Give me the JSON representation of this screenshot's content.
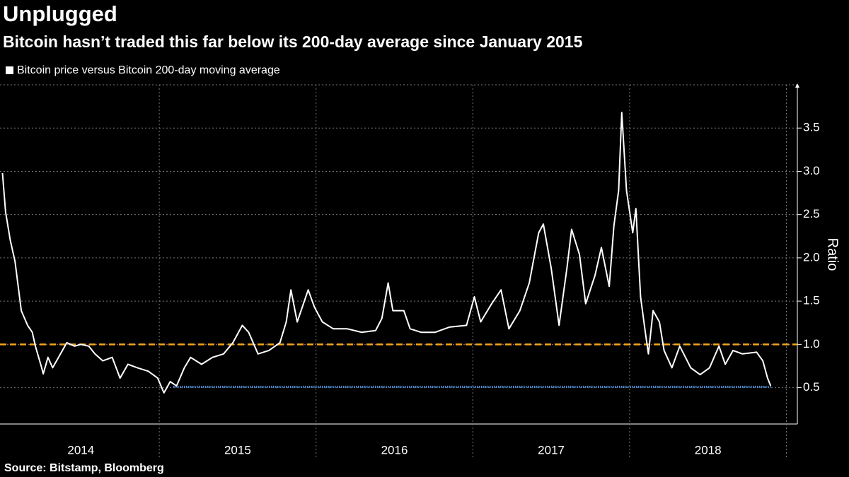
{
  "chart_data": {
    "type": "line",
    "title": "Unplugged",
    "subtitle": "Bitcoin hasn’t traded this far below its 200-day average since January 2015",
    "y_label": "Ratio",
    "source": "Source: Bitstamp, Bloomberg",
    "xlim": [
      2014.0,
      2019.07
    ],
    "ylim": [
      0.08,
      4.0
    ],
    "xticks": [
      {
        "value": 2014.5,
        "label": "2014"
      },
      {
        "value": 2015.5,
        "label": "2015"
      },
      {
        "value": 2016.5,
        "label": "2016"
      },
      {
        "value": 2017.5,
        "label": "2017"
      },
      {
        "value": 2018.5,
        "label": "2018"
      }
    ],
    "x_gridlines": [
      2015,
      2016,
      2017,
      2018,
      2019
    ],
    "yticks": [
      0.5,
      {
        "value": 1,
        "label": "1.0"
      },
      1.5,
      {
        "value": 2,
        "label": "2.0"
      },
      2.5,
      {
        "value": 3,
        "label": "3.0"
      },
      3.5
    ],
    "grid": true,
    "reference_lines": [
      {
        "value": 1,
        "color": "#f5a31a",
        "style": "dashed"
      },
      {
        "value": 0.51,
        "color": "#4a8fdb",
        "style": "dotted",
        "x_range": [
          2015.09,
          2018.9
        ]
      }
    ],
    "x": [
      2014.0,
      2014.02,
      2014.05,
      2014.08,
      2014.12,
      2014.16,
      2014.19,
      2014.21,
      2014.25,
      2014.26,
      2014.29,
      2014.32,
      2014.37,
      2014.41,
      2014.46,
      2014.5,
      2014.55,
      2014.59,
      2014.64,
      2014.7,
      2014.75,
      2014.8,
      2014.86,
      2014.93,
      2014.99,
      2015.03,
      2015.07,
      2015.11,
      2015.16,
      2015.2,
      2015.27,
      2015.34,
      2015.41,
      2015.47,
      2015.53,
      2015.57,
      2015.63,
      2015.7,
      2015.77,
      2015.81,
      2015.84,
      2015.88,
      2015.95,
      2015.99,
      2016.04,
      2016.11,
      2016.2,
      2016.29,
      2016.38,
      2016.42,
      2016.46,
      2016.49,
      2016.56,
      2016.6,
      2016.67,
      2016.76,
      2016.85,
      2016.96,
      2017.01,
      2017.05,
      2017.12,
      2017.18,
      2017.23,
      2017.3,
      2017.36,
      2017.42,
      2017.45,
      2017.5,
      2017.55,
      2017.6,
      2017.63,
      2017.68,
      2017.72,
      2017.78,
      2017.82,
      2017.87,
      2017.9,
      2017.93,
      2017.95,
      2017.98,
      2018.02,
      2018.04,
      2018.07,
      2018.1,
      2018.12,
      2018.15,
      2018.19,
      2018.22,
      2018.27,
      2018.32,
      2018.39,
      2018.45,
      2018.51,
      2018.57,
      2018.61,
      2018.66,
      2018.72,
      2018.81,
      2018.85,
      2018.88,
      2018.9
    ],
    "series": [
      {
        "name": "Bitcoin price versus Bitcoin 200-day moving average",
        "color": "#ffffff",
        "values": [
          2.98,
          2.53,
          2.2,
          1.96,
          1.39,
          1.22,
          1.14,
          0.98,
          0.73,
          0.66,
          0.85,
          0.73,
          0.89,
          1.02,
          0.98,
          1.0,
          0.98,
          0.89,
          0.81,
          0.85,
          0.61,
          0.77,
          0.73,
          0.69,
          0.61,
          0.44,
          0.57,
          0.52,
          0.73,
          0.85,
          0.77,
          0.85,
          0.89,
          1.02,
          1.22,
          1.14,
          0.89,
          0.93,
          1.02,
          1.26,
          1.63,
          1.26,
          1.63,
          1.43,
          1.26,
          1.18,
          1.18,
          1.14,
          1.16,
          1.3,
          1.71,
          1.39,
          1.39,
          1.18,
          1.14,
          1.14,
          1.2,
          1.22,
          1.55,
          1.26,
          1.47,
          1.63,
          1.18,
          1.39,
          1.71,
          2.29,
          2.39,
          1.88,
          1.22,
          1.88,
          2.33,
          2.04,
          1.47,
          1.8,
          2.12,
          1.67,
          2.37,
          2.78,
          3.68,
          2.78,
          2.29,
          2.57,
          1.55,
          1.14,
          0.89,
          1.39,
          1.26,
          0.93,
          0.73,
          0.98,
          0.73,
          0.65,
          0.73,
          0.98,
          0.77,
          0.93,
          0.89,
          0.91,
          0.81,
          0.61,
          0.52
        ]
      }
    ]
  }
}
